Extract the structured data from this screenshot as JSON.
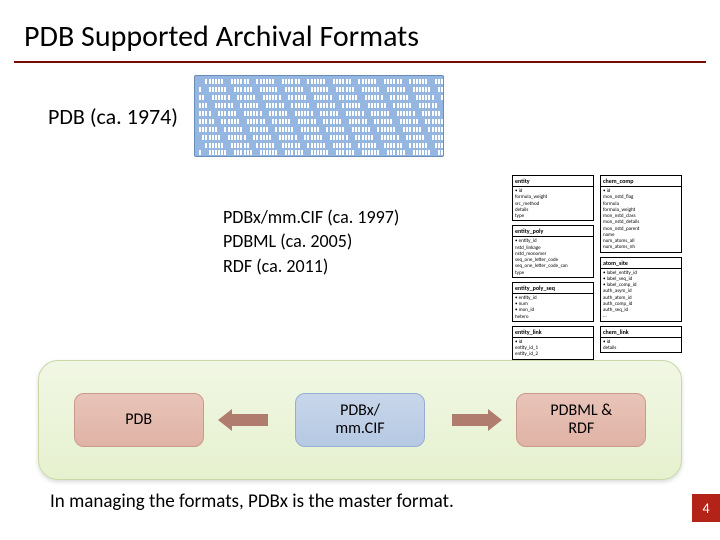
{
  "title": "PDB Supported Archival Formats",
  "section1": {
    "label": "PDB (ca. 1974)"
  },
  "section2": {
    "line1": "PDBx/mm.CIF (ca. 1997)",
    "line2": "PDBML (ca. 2005)",
    "line3": "RDF (ca.  2011)"
  },
  "schema": {
    "boxes": [
      {
        "hdr": "entity",
        "rows": [
          "• id",
          "  formula_weight",
          "  src_method",
          "  details",
          "  type"
        ]
      },
      {
        "hdr": "entity_poly",
        "rows": [
          "• entity_id",
          "  nstd_linkage",
          "  nstd_monomer",
          "  seq_one_letter_code",
          "  seq_one_letter_code_can",
          "  type"
        ]
      },
      {
        "hdr": "entity_poly_seq",
        "rows": [
          "• entity_id",
          "• num",
          "• mon_id",
          "  hetero"
        ]
      },
      {
        "hdr": "entity_link",
        "rows": [
          "• id",
          "  entity_id_1",
          "  entity_id_2"
        ]
      },
      {
        "hdr": "chem_comp",
        "rows": [
          "• id",
          "  mon_nstd_flag",
          "  formula",
          "  formula_weight",
          "  mon_nstd_class",
          "  mon_nstd_details",
          "  mon_nstd_parent",
          "  name",
          "  num_atoms_all",
          "  num_atoms_nh"
        ]
      },
      {
        "hdr": "atom_site",
        "rows": [
          "• label_entity_id",
          "• label_seq_id",
          "• label_comp_id",
          "  auth_asym_id",
          "  auth_atom_id",
          "  auth_comp_id",
          "  auth_seq_id",
          "  ..."
        ]
      },
      {
        "hdr": "chem_link",
        "rows": [
          "• id",
          "  details"
        ]
      }
    ]
  },
  "flow": {
    "box1": "PDB",
    "box2_l1": "PDBx/",
    "box2_l2": "mm.CIF",
    "box3_l1": "PDBML &",
    "box3_l2": "RDF",
    "arrow_color": "#b07c6e",
    "box_red_bg": "#e0b3a6",
    "box_blue_bg": "#b6c9e3",
    "container_bg": "#e6f1cf"
  },
  "caption": "In managing the formats, PDBx is the master format.",
  "pagenum": "4",
  "colors": {
    "title_rule": "#7c0a02",
    "punchcard_bg": "#95b6e0",
    "pagenum_bg": "#b32317"
  }
}
